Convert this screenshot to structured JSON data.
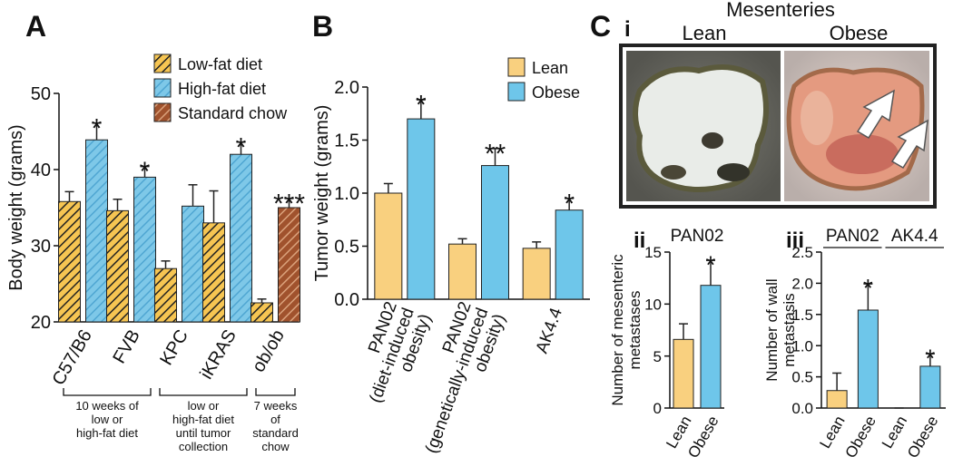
{
  "panel_c": {
    "label": "C",
    "sublabel": "i",
    "title": "Mesenteries",
    "columns": [
      "Lean",
      "Obese"
    ]
  },
  "chart_data": [
    {
      "type": "bar",
      "panel_label": "A",
      "ylabel": [
        "Body weight (grams)"
      ],
      "hatch": true,
      "categories": [
        [
          "C57/B6"
        ],
        [
          "FVB"
        ],
        [
          "KPC"
        ],
        [
          "iKRAS"
        ],
        [
          "ob/ob"
        ]
      ],
      "group_labels": [
        [
          "10 weeks of",
          "low or",
          "high-fat diet"
        ],
        [
          "low or",
          "high-fat diet",
          "until tumor",
          "collection"
        ],
        [
          "7 weeks",
          "of",
          "standard",
          "chow"
        ]
      ],
      "series": [
        {
          "name": "Low-fat diet",
          "color": "#f6c552",
          "hatch_color": "#222222",
          "values": [
            35.8,
            34.6,
            27,
            33,
            22.5
          ],
          "errors": [
            1.3,
            1.5,
            1.0,
            4.2,
            0.5
          ],
          "annotations": [
            null,
            null,
            null,
            null,
            null
          ]
        },
        {
          "name": "High-fat diet",
          "color": "#7ec8e8",
          "hatch_color": "#4fa6d2",
          "values": [
            43.9,
            39,
            35.2,
            42,
            null
          ],
          "errors": [
            2.2,
            1.4,
            2.8,
            1.6,
            null
          ],
          "annotations": [
            "*",
            "*",
            null,
            "*",
            null
          ]
        },
        {
          "name": "Standard chow",
          "color": "#a0522d",
          "hatch_color": "#dba27c",
          "values": [
            null,
            null,
            null,
            null,
            35
          ],
          "errors": [
            null,
            null,
            null,
            null,
            1.2
          ],
          "annotations": [
            null,
            null,
            null,
            null,
            "***"
          ]
        }
      ],
      "ylim": [
        20,
        50
      ],
      "yticks": [
        20,
        30,
        40,
        50
      ]
    },
    {
      "type": "bar",
      "panel_label": "B",
      "ylabel": [
        "Tumor weight (grams)"
      ],
      "hatch": false,
      "categories": [
        [
          "PAN02",
          "(diet-induced",
          "obesity)"
        ],
        [
          "PAN02",
          "(genetically-induced",
          "obesity)"
        ],
        [
          "AK4.4"
        ]
      ],
      "series": [
        {
          "name": "Lean",
          "color": "#f9d07f",
          "values": [
            1.0,
            0.52,
            0.48
          ],
          "errors": [
            0.09,
            0.05,
            0.06
          ],
          "annotations": [
            null,
            null,
            null
          ]
        },
        {
          "name": "Obese",
          "color": "#6ec6ea",
          "values": [
            1.7,
            1.26,
            0.84
          ],
          "errors": [
            0.18,
            0.16,
            0.11
          ],
          "annotations": [
            "*",
            "**",
            "*"
          ]
        }
      ],
      "ylim": [
        0,
        2
      ],
      "yticks": [
        {
          "value": 0,
          "label": "0.0"
        },
        {
          "value": 0.5,
          "label": "0.5"
        },
        {
          "value": 1,
          "label": "1.0"
        },
        {
          "value": 1.5,
          "label": "1.5"
        },
        {
          "value": 2,
          "label": "2.0"
        }
      ]
    },
    {
      "type": "bar",
      "panel_label": "ii",
      "title": "PAN02",
      "ylabel": [
        "Number of mesenteric",
        "metastases"
      ],
      "hatch": false,
      "categories": [
        [
          "Lean"
        ],
        [
          "Obese"
        ]
      ],
      "series": [
        {
          "colors": [
            "#f9d07f",
            "#6ec6ea"
          ],
          "values": [
            6.6,
            11.8
          ],
          "errors": [
            1.5,
            2.4
          ],
          "annotations": [
            null,
            "*"
          ]
        }
      ],
      "ylim": [
        0,
        15
      ],
      "yticks": [
        0,
        5,
        10,
        15
      ]
    },
    {
      "type": "bar",
      "panel_label": "iii",
      "ylabel": [
        "Number of wall",
        "metastasis"
      ],
      "hatch": false,
      "categories": [
        [
          "Lean"
        ],
        [
          "Obese"
        ],
        [
          "Lean"
        ],
        [
          "Obese"
        ]
      ],
      "group_labels": [
        [
          "PAN02"
        ],
        [
          "AK4.4"
        ]
      ],
      "series": [
        {
          "colors": [
            "#f9d07f",
            "#6ec6ea",
            "#f9d07f",
            "#6ec6ea"
          ],
          "values": [
            0.28,
            1.57,
            0,
            0.67
          ],
          "errors": [
            0.28,
            0.42,
            0,
            0.2
          ],
          "annotations": [
            null,
            "*",
            null,
            "*"
          ]
        }
      ],
      "ylim": [
        0,
        2.5
      ],
      "yticks": [
        {
          "value": 0,
          "label": "0.0"
        },
        {
          "value": 0.5,
          "label": "0.5"
        },
        {
          "value": 1,
          "label": "1.0"
        },
        {
          "value": 1.5,
          "label": "1.5"
        },
        {
          "value": 2,
          "label": "2.0"
        },
        {
          "value": 2.5,
          "label": "2.5"
        }
      ]
    }
  ]
}
